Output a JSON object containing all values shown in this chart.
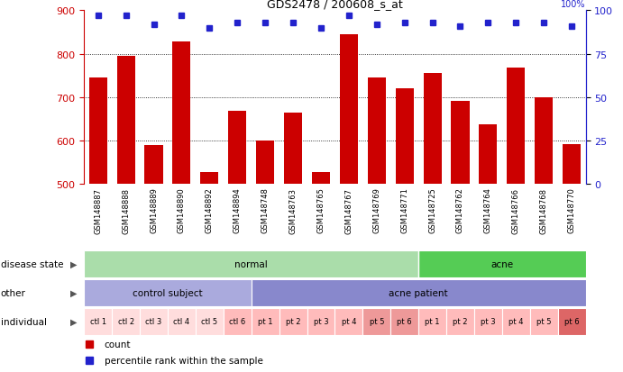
{
  "title": "GDS2478 / 200608_s_at",
  "samples": [
    "GSM148887",
    "GSM148888",
    "GSM148889",
    "GSM148890",
    "GSM148892",
    "GSM148894",
    "GSM148748",
    "GSM148763",
    "GSM148765",
    "GSM148767",
    "GSM148769",
    "GSM148771",
    "GSM148725",
    "GSM148762",
    "GSM148764",
    "GSM148766",
    "GSM148768",
    "GSM148770"
  ],
  "counts": [
    745,
    795,
    590,
    828,
    527,
    668,
    600,
    663,
    527,
    845,
    745,
    720,
    755,
    692,
    637,
    767,
    700,
    592
  ],
  "percentile_ranks": [
    97,
    97,
    92,
    97,
    90,
    93,
    93,
    93,
    90,
    97,
    92,
    93,
    93,
    91,
    93,
    93,
    93,
    91
  ],
  "ylim_left": [
    500,
    900
  ],
  "yticks_left": [
    500,
    600,
    700,
    800,
    900
  ],
  "ylim_right": [
    0,
    100
  ],
  "yticks_right": [
    0,
    25,
    50,
    75,
    100
  ],
  "bar_color": "#cc0000",
  "dot_color": "#2222cc",
  "left_axis_color": "#cc0000",
  "right_axis_color": "#2222cc",
  "disease_state_groups": [
    {
      "label": "normal",
      "start": 0,
      "end": 12,
      "color": "#aaddaa"
    },
    {
      "label": "acne",
      "start": 12,
      "end": 18,
      "color": "#55cc55"
    }
  ],
  "other_groups": [
    {
      "label": "control subject",
      "start": 0,
      "end": 6,
      "color": "#aaaadd"
    },
    {
      "label": "acne patient",
      "start": 6,
      "end": 18,
      "color": "#8888cc"
    }
  ],
  "individual_groups": [
    {
      "label": "ctl 1",
      "start": 0,
      "end": 1,
      "color": "#ffdddd"
    },
    {
      "label": "ctl 2",
      "start": 1,
      "end": 2,
      "color": "#ffdddd"
    },
    {
      "label": "ctl 3",
      "start": 2,
      "end": 3,
      "color": "#ffdddd"
    },
    {
      "label": "ctl 4",
      "start": 3,
      "end": 4,
      "color": "#ffdddd"
    },
    {
      "label": "ctl 5",
      "start": 4,
      "end": 5,
      "color": "#ffdddd"
    },
    {
      "label": "ctl 6",
      "start": 5,
      "end": 6,
      "color": "#ffbbbb"
    },
    {
      "label": "pt 1",
      "start": 6,
      "end": 7,
      "color": "#ffbbbb"
    },
    {
      "label": "pt 2",
      "start": 7,
      "end": 8,
      "color": "#ffbbbb"
    },
    {
      "label": "pt 3",
      "start": 8,
      "end": 9,
      "color": "#ffbbbb"
    },
    {
      "label": "pt 4",
      "start": 9,
      "end": 10,
      "color": "#ffbbbb"
    },
    {
      "label": "pt 5",
      "start": 10,
      "end": 11,
      "color": "#ee9999"
    },
    {
      "label": "pt 6",
      "start": 11,
      "end": 12,
      "color": "#ee9999"
    },
    {
      "label": "pt 1",
      "start": 12,
      "end": 13,
      "color": "#ffbbbb"
    },
    {
      "label": "pt 2",
      "start": 13,
      "end": 14,
      "color": "#ffbbbb"
    },
    {
      "label": "pt 3",
      "start": 14,
      "end": 15,
      "color": "#ffbbbb"
    },
    {
      "label": "pt 4",
      "start": 15,
      "end": 16,
      "color": "#ffbbbb"
    },
    {
      "label": "pt 5",
      "start": 16,
      "end": 17,
      "color": "#ffbbbb"
    },
    {
      "label": "pt 6",
      "start": 17,
      "end": 18,
      "color": "#dd6666"
    }
  ],
  "row_labels": [
    "disease state",
    "other",
    "individual"
  ],
  "background_color": "#ffffff",
  "tick_bg_color": "#cccccc",
  "legend_items": [
    {
      "marker": "s",
      "color": "#cc0000",
      "label": "count"
    },
    {
      "marker": "s",
      "color": "#2222cc",
      "label": "percentile rank within the sample"
    }
  ]
}
